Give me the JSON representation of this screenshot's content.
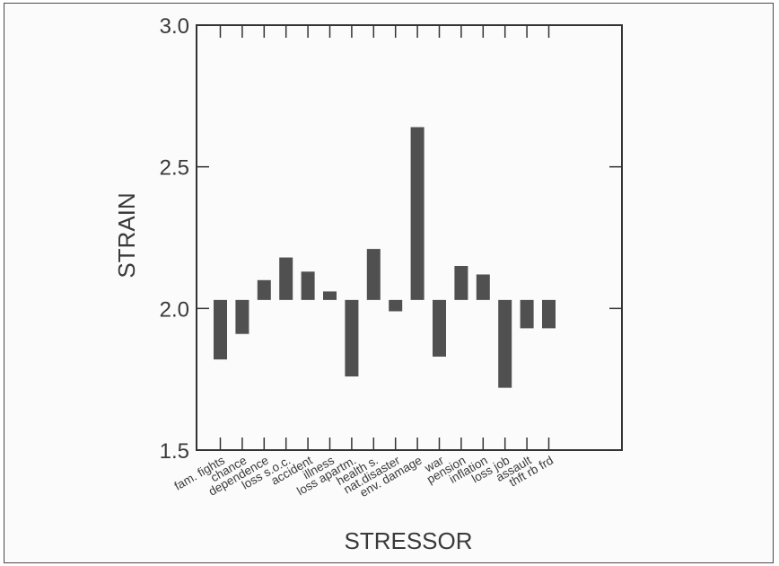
{
  "colors": {
    "bar": "#505050",
    "axis": "#333333",
    "text": "#3a3a3a",
    "frame": "#4a4a4a"
  },
  "chart_data": {
    "type": "bar",
    "title": "",
    "xlabel": "STRESSOR",
    "ylabel": "STRAIN",
    "baseline": 2.03,
    "ylim": [
      1.5,
      3.0
    ],
    "yticks": [
      1.5,
      2.0,
      2.5,
      3.0
    ],
    "ytick_labels": [
      "1.5",
      "2.0",
      "2.5",
      "3.0"
    ],
    "grid": false,
    "categories": [
      "fam. fights",
      "chance",
      "dependence",
      "loss s.o.c.",
      "accident",
      "illness",
      "loss apartm.",
      "health s.",
      "nat.disaster",
      "env. damage",
      "war",
      "pension",
      "inflation",
      "loss job",
      "assault",
      "thft rb frd"
    ],
    "values": [
      1.82,
      1.91,
      2.1,
      2.18,
      2.13,
      2.06,
      1.76,
      2.21,
      1.99,
      2.64,
      1.83,
      2.15,
      2.12,
      1.72,
      1.93,
      1.93
    ]
  }
}
